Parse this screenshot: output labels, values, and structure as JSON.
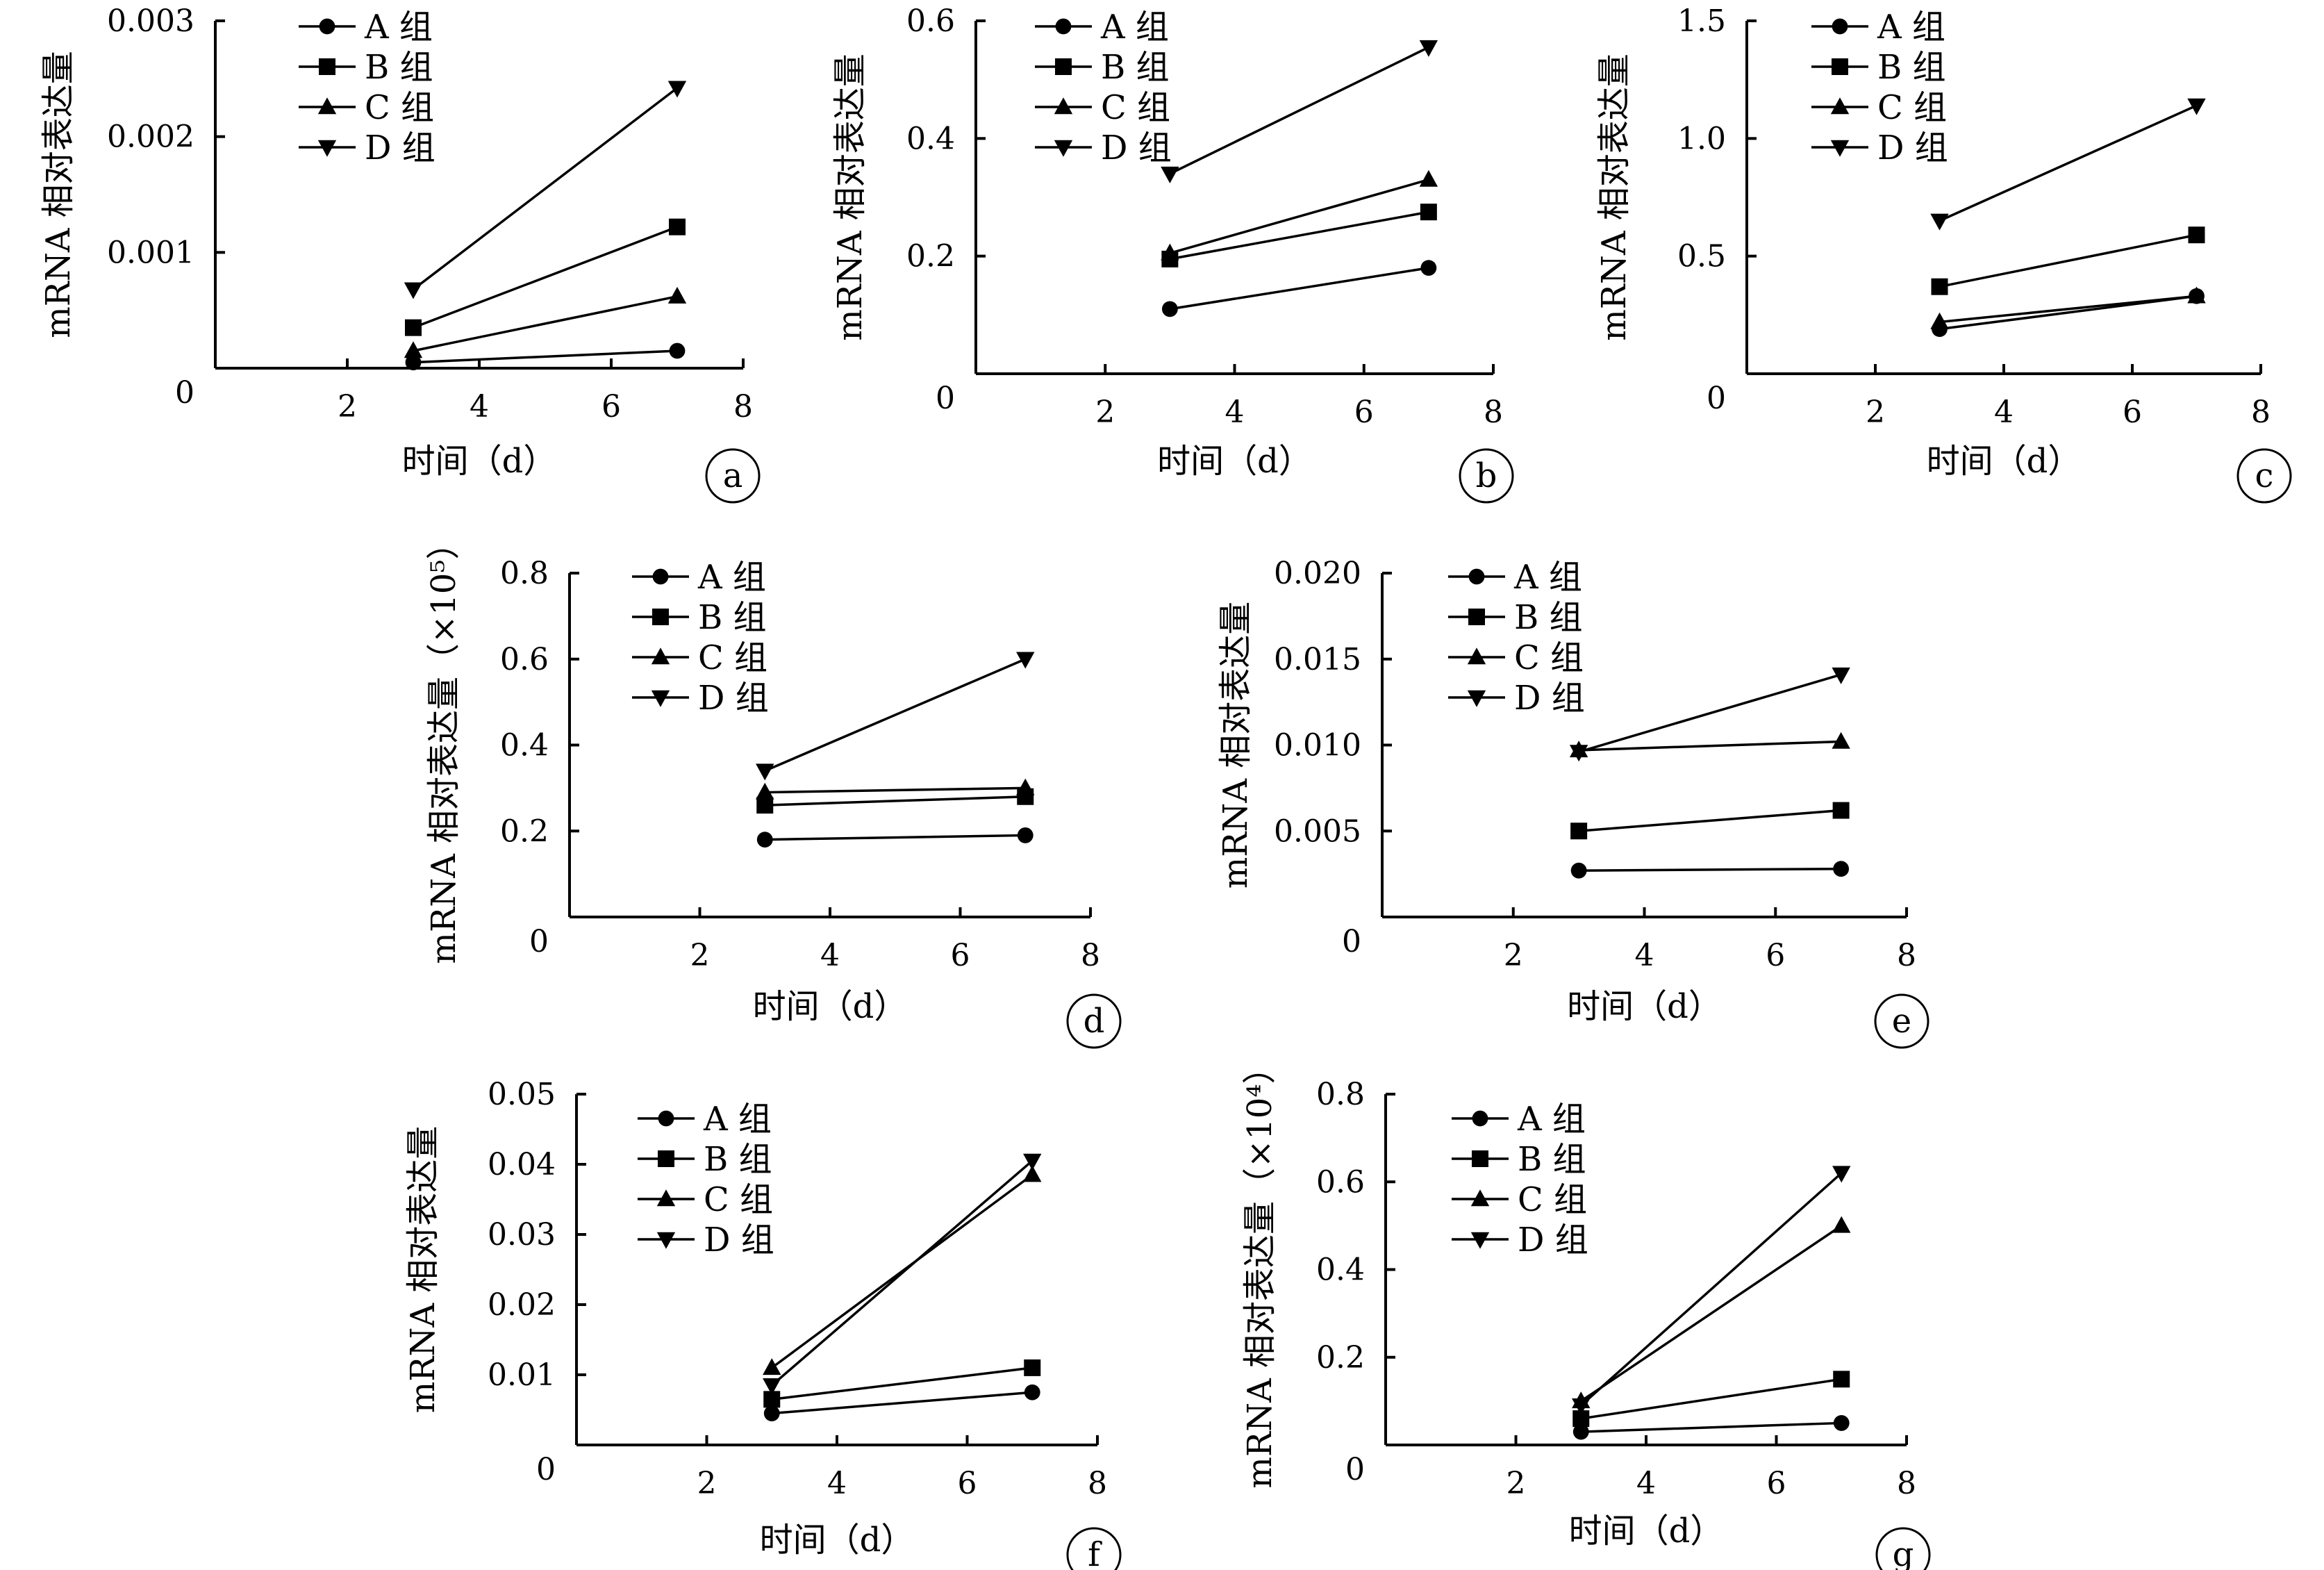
{
  "chart_data": [
    {
      "panel": "a",
      "type": "line",
      "ylabel": "mRNA 相对表达量",
      "xlabel": "时间（d）",
      "xlim": [
        0,
        8
      ],
      "ylim": [
        0,
        0.003
      ],
      "x_ticks": [
        2,
        4,
        6,
        8
      ],
      "x_tick_labels": [
        "2",
        "4",
        "6",
        "8"
      ],
      "y_ticks": [
        0.001,
        0.002,
        0.003
      ],
      "y_tick_labels": [
        "0.001",
        "0.002",
        "0.003"
      ],
      "origin_label": "0",
      "x": [
        3,
        7
      ],
      "series": [
        {
          "name": "A 组",
          "marker": "circle",
          "values": [
            5e-05,
            0.00015
          ]
        },
        {
          "name": "B 组",
          "marker": "square",
          "values": [
            0.00035,
            0.00122
          ]
        },
        {
          "name": "C 组",
          "marker": "triangle-up",
          "values": [
            0.00015,
            0.00062
          ]
        },
        {
          "name": "D 组",
          "marker": "triangle-down",
          "values": [
            0.00068,
            0.00242
          ]
        }
      ]
    },
    {
      "panel": "b",
      "type": "line",
      "ylabel": "mRNA 相对表达量",
      "xlabel": "时间（d）",
      "xlim": [
        0,
        8
      ],
      "ylim": [
        0,
        0.6
      ],
      "x_ticks": [
        2,
        4,
        6,
        8
      ],
      "x_tick_labels": [
        "2",
        "4",
        "6",
        "8"
      ],
      "y_ticks": [
        0.2,
        0.4,
        0.6
      ],
      "y_tick_labels": [
        "0.2",
        "0.4",
        "0.6"
      ],
      "origin_label": "0",
      "x": [
        3,
        7
      ],
      "series": [
        {
          "name": "A 组",
          "marker": "circle",
          "values": [
            0.11,
            0.18
          ]
        },
        {
          "name": "B 组",
          "marker": "square",
          "values": [
            0.195,
            0.275
          ]
        },
        {
          "name": "C 组",
          "marker": "triangle-up",
          "values": [
            0.205,
            0.33
          ]
        },
        {
          "name": "D 组",
          "marker": "triangle-down",
          "values": [
            0.34,
            0.555
          ]
        }
      ]
    },
    {
      "panel": "c",
      "type": "line",
      "ylabel": "mRNA 相对表达量",
      "xlabel": "时间（d）",
      "xlim": [
        0,
        8
      ],
      "ylim": [
        0,
        1.5
      ],
      "x_ticks": [
        2,
        4,
        6,
        8
      ],
      "x_tick_labels": [
        "2",
        "4",
        "6",
        "8"
      ],
      "y_ticks": [
        0.5,
        1.0,
        1.5
      ],
      "y_tick_labels": [
        "0.5",
        "1.0",
        "1.5"
      ],
      "origin_label": "0",
      "x": [
        3,
        7
      ],
      "series": [
        {
          "name": "A 组",
          "marker": "circle",
          "values": [
            0.19,
            0.33
          ]
        },
        {
          "name": "B 组",
          "marker": "square",
          "values": [
            0.37,
            0.59
          ]
        },
        {
          "name": "C 组",
          "marker": "triangle-up",
          "values": [
            0.22,
            0.33
          ]
        },
        {
          "name": "D 组",
          "marker": "triangle-down",
          "values": [
            0.65,
            1.14
          ]
        }
      ]
    },
    {
      "panel": "d",
      "type": "line",
      "ylabel": "mRNA 相对表达量（×10⁵）",
      "xlabel": "时间（d）",
      "xlim": [
        0,
        8
      ],
      "ylim": [
        0,
        0.8
      ],
      "x_ticks": [
        2,
        4,
        6,
        8
      ],
      "x_tick_labels": [
        "2",
        "4",
        "6",
        "8"
      ],
      "y_ticks": [
        0.2,
        0.4,
        0.6,
        0.8
      ],
      "y_tick_labels": [
        "0.2",
        "0.4",
        "0.6",
        "0.8"
      ],
      "origin_label": "0",
      "x": [
        3,
        7
      ],
      "series": [
        {
          "name": "A 组",
          "marker": "circle",
          "values": [
            0.18,
            0.19
          ]
        },
        {
          "name": "B 组",
          "marker": "square",
          "values": [
            0.26,
            0.28
          ]
        },
        {
          "name": "C 组",
          "marker": "triangle-up",
          "values": [
            0.29,
            0.3
          ]
        },
        {
          "name": "D 组",
          "marker": "triangle-down",
          "values": [
            0.34,
            0.6
          ]
        }
      ]
    },
    {
      "panel": "e",
      "type": "line",
      "ylabel": "mRNA 相对表达量",
      "xlabel": "时间（d）",
      "xlim": [
        0,
        8
      ],
      "ylim": [
        0,
        0.02
      ],
      "x_ticks": [
        2,
        4,
        6,
        8
      ],
      "x_tick_labels": [
        "2",
        "4",
        "6",
        "8"
      ],
      "y_ticks": [
        0.005,
        0.01,
        0.015,
        0.02
      ],
      "y_tick_labels": [
        "0.005",
        "0.010",
        "0.015",
        "0.020"
      ],
      "origin_label": "0",
      "x": [
        3,
        7
      ],
      "series": [
        {
          "name": "A 组",
          "marker": "circle",
          "values": [
            0.0027,
            0.0028
          ]
        },
        {
          "name": "B 组",
          "marker": "square",
          "values": [
            0.005,
            0.0062
          ]
        },
        {
          "name": "C 组",
          "marker": "triangle-up",
          "values": [
            0.0097,
            0.0102
          ]
        },
        {
          "name": "D 组",
          "marker": "triangle-down",
          "values": [
            0.0096,
            0.0141
          ]
        }
      ]
    },
    {
      "panel": "f",
      "type": "line",
      "ylabel": "mRNA 相对表达量",
      "xlabel": "时间（d）",
      "xlim": [
        0,
        8
      ],
      "ylim": [
        0,
        0.05
      ],
      "x_ticks": [
        2,
        4,
        6,
        8
      ],
      "x_tick_labels": [
        "2",
        "4",
        "6",
        "8"
      ],
      "y_ticks": [
        0.01,
        0.02,
        0.03,
        0.04,
        0.05
      ],
      "y_tick_labels": [
        "0.01",
        "0.02",
        "0.03",
        "0.04",
        "0.05"
      ],
      "origin_label": "0",
      "x": [
        3,
        7
      ],
      "series": [
        {
          "name": "A 组",
          "marker": "circle",
          "values": [
            0.0045,
            0.0075
          ]
        },
        {
          "name": "B 组",
          "marker": "square",
          "values": [
            0.0065,
            0.011
          ]
        },
        {
          "name": "C 组",
          "marker": "triangle-up",
          "values": [
            0.011,
            0.0385
          ]
        },
        {
          "name": "D 组",
          "marker": "triangle-down",
          "values": [
            0.0085,
            0.0405
          ]
        }
      ]
    },
    {
      "panel": "g",
      "type": "line",
      "ylabel": "mRNA 相对表达量（×10⁴）",
      "xlabel": "时间（d）",
      "xlim": [
        0,
        8
      ],
      "ylim": [
        0,
        0.8
      ],
      "x_ticks": [
        2,
        4,
        6,
        8
      ],
      "x_tick_labels": [
        "2",
        "4",
        "6",
        "8"
      ],
      "y_ticks": [
        0.2,
        0.4,
        0.6,
        0.8
      ],
      "y_tick_labels": [
        "0.2",
        "0.4",
        "0.6",
        "0.8"
      ],
      "origin_label": "0",
      "x": [
        3,
        7
      ],
      "series": [
        {
          "name": "A 组",
          "marker": "circle",
          "values": [
            0.03,
            0.05
          ]
        },
        {
          "name": "B 组",
          "marker": "square",
          "values": [
            0.06,
            0.15
          ]
        },
        {
          "name": "C 组",
          "marker": "triangle-up",
          "values": [
            0.1,
            0.5
          ]
        },
        {
          "name": "D 组",
          "marker": "triangle-down",
          "values": [
            0.09,
            0.62
          ]
        }
      ]
    }
  ]
}
